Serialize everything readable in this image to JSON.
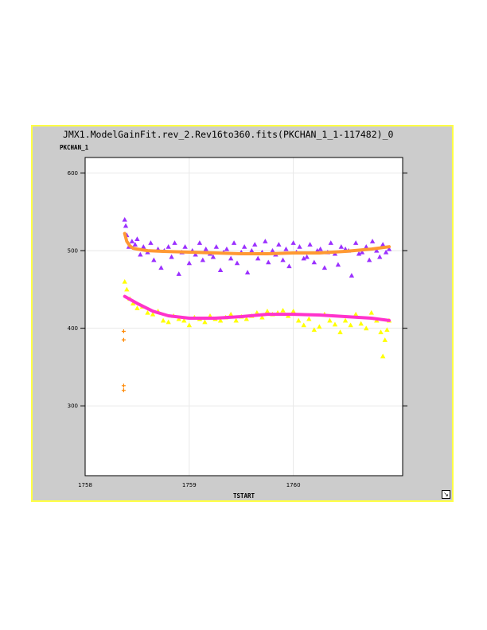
{
  "window": {
    "title": "JMX1.ModelGainFit.rev_2.Rev16to360.fits(PKCHAN_1_1-117482)_0"
  },
  "colors": {
    "panel_bg": "#cccccc",
    "panel_border": "#ffff44",
    "plot_bg": "#ffffff",
    "grid": "#e8e8e8",
    "series_upper_points": "#9b30ff",
    "series_upper_fit": "#ff9933",
    "series_lower_points": "#ffff00",
    "series_lower_fit": "#ff33cc"
  },
  "icons": {
    "resize": "resize-arrow-icon"
  },
  "chart_data": {
    "type": "scatter",
    "title": "JMX1.ModelGainFit.rev_2.Rev16to360.fits(PKCHAN_1_1-117482)_0",
    "xlabel": "TSTART",
    "ylabel": "PKCHAN_1",
    "xlim": [
      1758.0,
      1761.05
    ],
    "ylim": [
      210,
      620
    ],
    "xticks": [
      1758,
      1759,
      1760
    ],
    "xtick_labels": [
      "1758",
      "1759",
      "1760"
    ],
    "yticks": [
      300,
      400,
      500,
      600
    ],
    "ytick_labels": [
      "300",
      "400",
      "500",
      "600"
    ],
    "grid": true,
    "series": [
      {
        "marker": "triangle",
        "color": "#9b30ff",
        "x": [
          1758.38,
          1758.39,
          1758.4,
          1758.42,
          1758.45,
          1758.48,
          1758.5,
          1758.53,
          1758.56,
          1758.6,
          1758.63,
          1758.66,
          1758.7,
          1758.73,
          1758.76,
          1758.8,
          1758.83,
          1758.86,
          1758.9,
          1758.93,
          1758.96,
          1759.0,
          1759.03,
          1759.06,
          1759.1,
          1759.13,
          1759.16,
          1759.2,
          1759.23,
          1759.26,
          1759.3,
          1759.33,
          1759.36,
          1759.4,
          1759.43,
          1759.46,
          1759.5,
          1759.53,
          1759.56,
          1759.6,
          1759.63,
          1759.66,
          1759.7,
          1759.73,
          1759.76,
          1759.8,
          1759.83,
          1759.86,
          1759.9,
          1759.93,
          1759.96,
          1760.0,
          1760.03,
          1760.06,
          1760.1,
          1760.13,
          1760.16,
          1760.2,
          1760.23,
          1760.26,
          1760.3,
          1760.33,
          1760.36,
          1760.4,
          1760.43,
          1760.46,
          1760.5,
          1760.53,
          1760.56,
          1760.6,
          1760.63,
          1760.66,
          1760.7,
          1760.73,
          1760.76,
          1760.8,
          1760.83,
          1760.86,
          1760.89,
          1760.92
        ],
        "y": [
          540,
          532,
          520,
          505,
          512,
          508,
          515,
          495,
          505,
          498,
          510,
          488,
          502,
          478,
          500,
          505,
          492,
          510,
          470,
          498,
          505,
          484,
          500,
          495,
          510,
          488,
          502,
          496,
          492,
          505,
          475,
          498,
          502,
          490,
          510,
          484,
          498,
          505,
          472,
          500,
          508,
          490,
          498,
          512,
          485,
          500,
          495,
          508,
          488,
          502,
          480,
          510,
          498,
          505,
          490,
          492,
          508,
          485,
          500,
          502,
          478,
          498,
          510,
          496,
          482,
          505,
          502,
          500,
          468,
          510,
          496,
          498,
          505,
          488,
          512,
          500,
          492,
          508,
          498,
          502
        ]
      },
      {
        "marker": "line",
        "color": "#ff9933",
        "x": [
          1758.38,
          1758.4,
          1758.43,
          1758.46,
          1758.5,
          1758.6,
          1758.75,
          1759.0,
          1759.25,
          1759.5,
          1759.75,
          1760.0,
          1760.25,
          1760.5,
          1760.75,
          1760.92
        ],
        "y": [
          522,
          512,
          506,
          503,
          502,
          500,
          499,
          498,
          497,
          496,
          496,
          497,
          497,
          499,
          502,
          505
        ]
      },
      {
        "marker": "triangle",
        "color": "#ffff00",
        "x": [
          1758.38,
          1758.4,
          1758.43,
          1758.46,
          1758.5,
          1758.55,
          1758.6,
          1758.65,
          1758.7,
          1758.75,
          1758.8,
          1758.85,
          1758.9,
          1758.95,
          1759.0,
          1759.05,
          1759.1,
          1759.15,
          1759.2,
          1759.25,
          1759.3,
          1759.35,
          1759.4,
          1759.45,
          1759.5,
          1759.55,
          1759.6,
          1759.65,
          1759.7,
          1759.75,
          1759.8,
          1759.85,
          1759.9,
          1759.95,
          1760.0,
          1760.05,
          1760.1,
          1760.15,
          1760.2,
          1760.25,
          1760.3,
          1760.35,
          1760.4,
          1760.45,
          1760.5,
          1760.55,
          1760.6,
          1760.65,
          1760.7,
          1760.75,
          1760.8,
          1760.84,
          1760.86,
          1760.88,
          1760.9,
          1760.92
        ],
        "y": [
          460,
          450,
          438,
          432,
          426,
          428,
          420,
          418,
          422,
          410,
          408,
          416,
          412,
          410,
          404,
          414,
          412,
          408,
          416,
          412,
          410,
          414,
          418,
          410,
          415,
          412,
          416,
          420,
          414,
          422,
          418,
          420,
          423,
          416,
          422,
          410,
          404,
          412,
          398,
          402,
          418,
          410,
          405,
          395,
          410,
          404,
          418,
          406,
          400,
          420,
          410,
          395,
          364,
          385,
          398,
          410
        ]
      },
      {
        "marker": "line",
        "color": "#ff33cc",
        "x": [
          1758.38,
          1758.5,
          1758.65,
          1758.8,
          1759.0,
          1759.25,
          1759.5,
          1759.75,
          1760.0,
          1760.25,
          1760.5,
          1760.75,
          1760.92
        ],
        "y": [
          441,
          432,
          422,
          416,
          413,
          413,
          415,
          418,
          418,
          417,
          415,
          413,
          410
        ]
      },
      {
        "marker": "plus",
        "color": "#ff8800",
        "x": [
          1758.37,
          1758.37,
          1758.37,
          1758.37
        ],
        "y": [
          396,
          385,
          326,
          320
        ]
      }
    ]
  }
}
